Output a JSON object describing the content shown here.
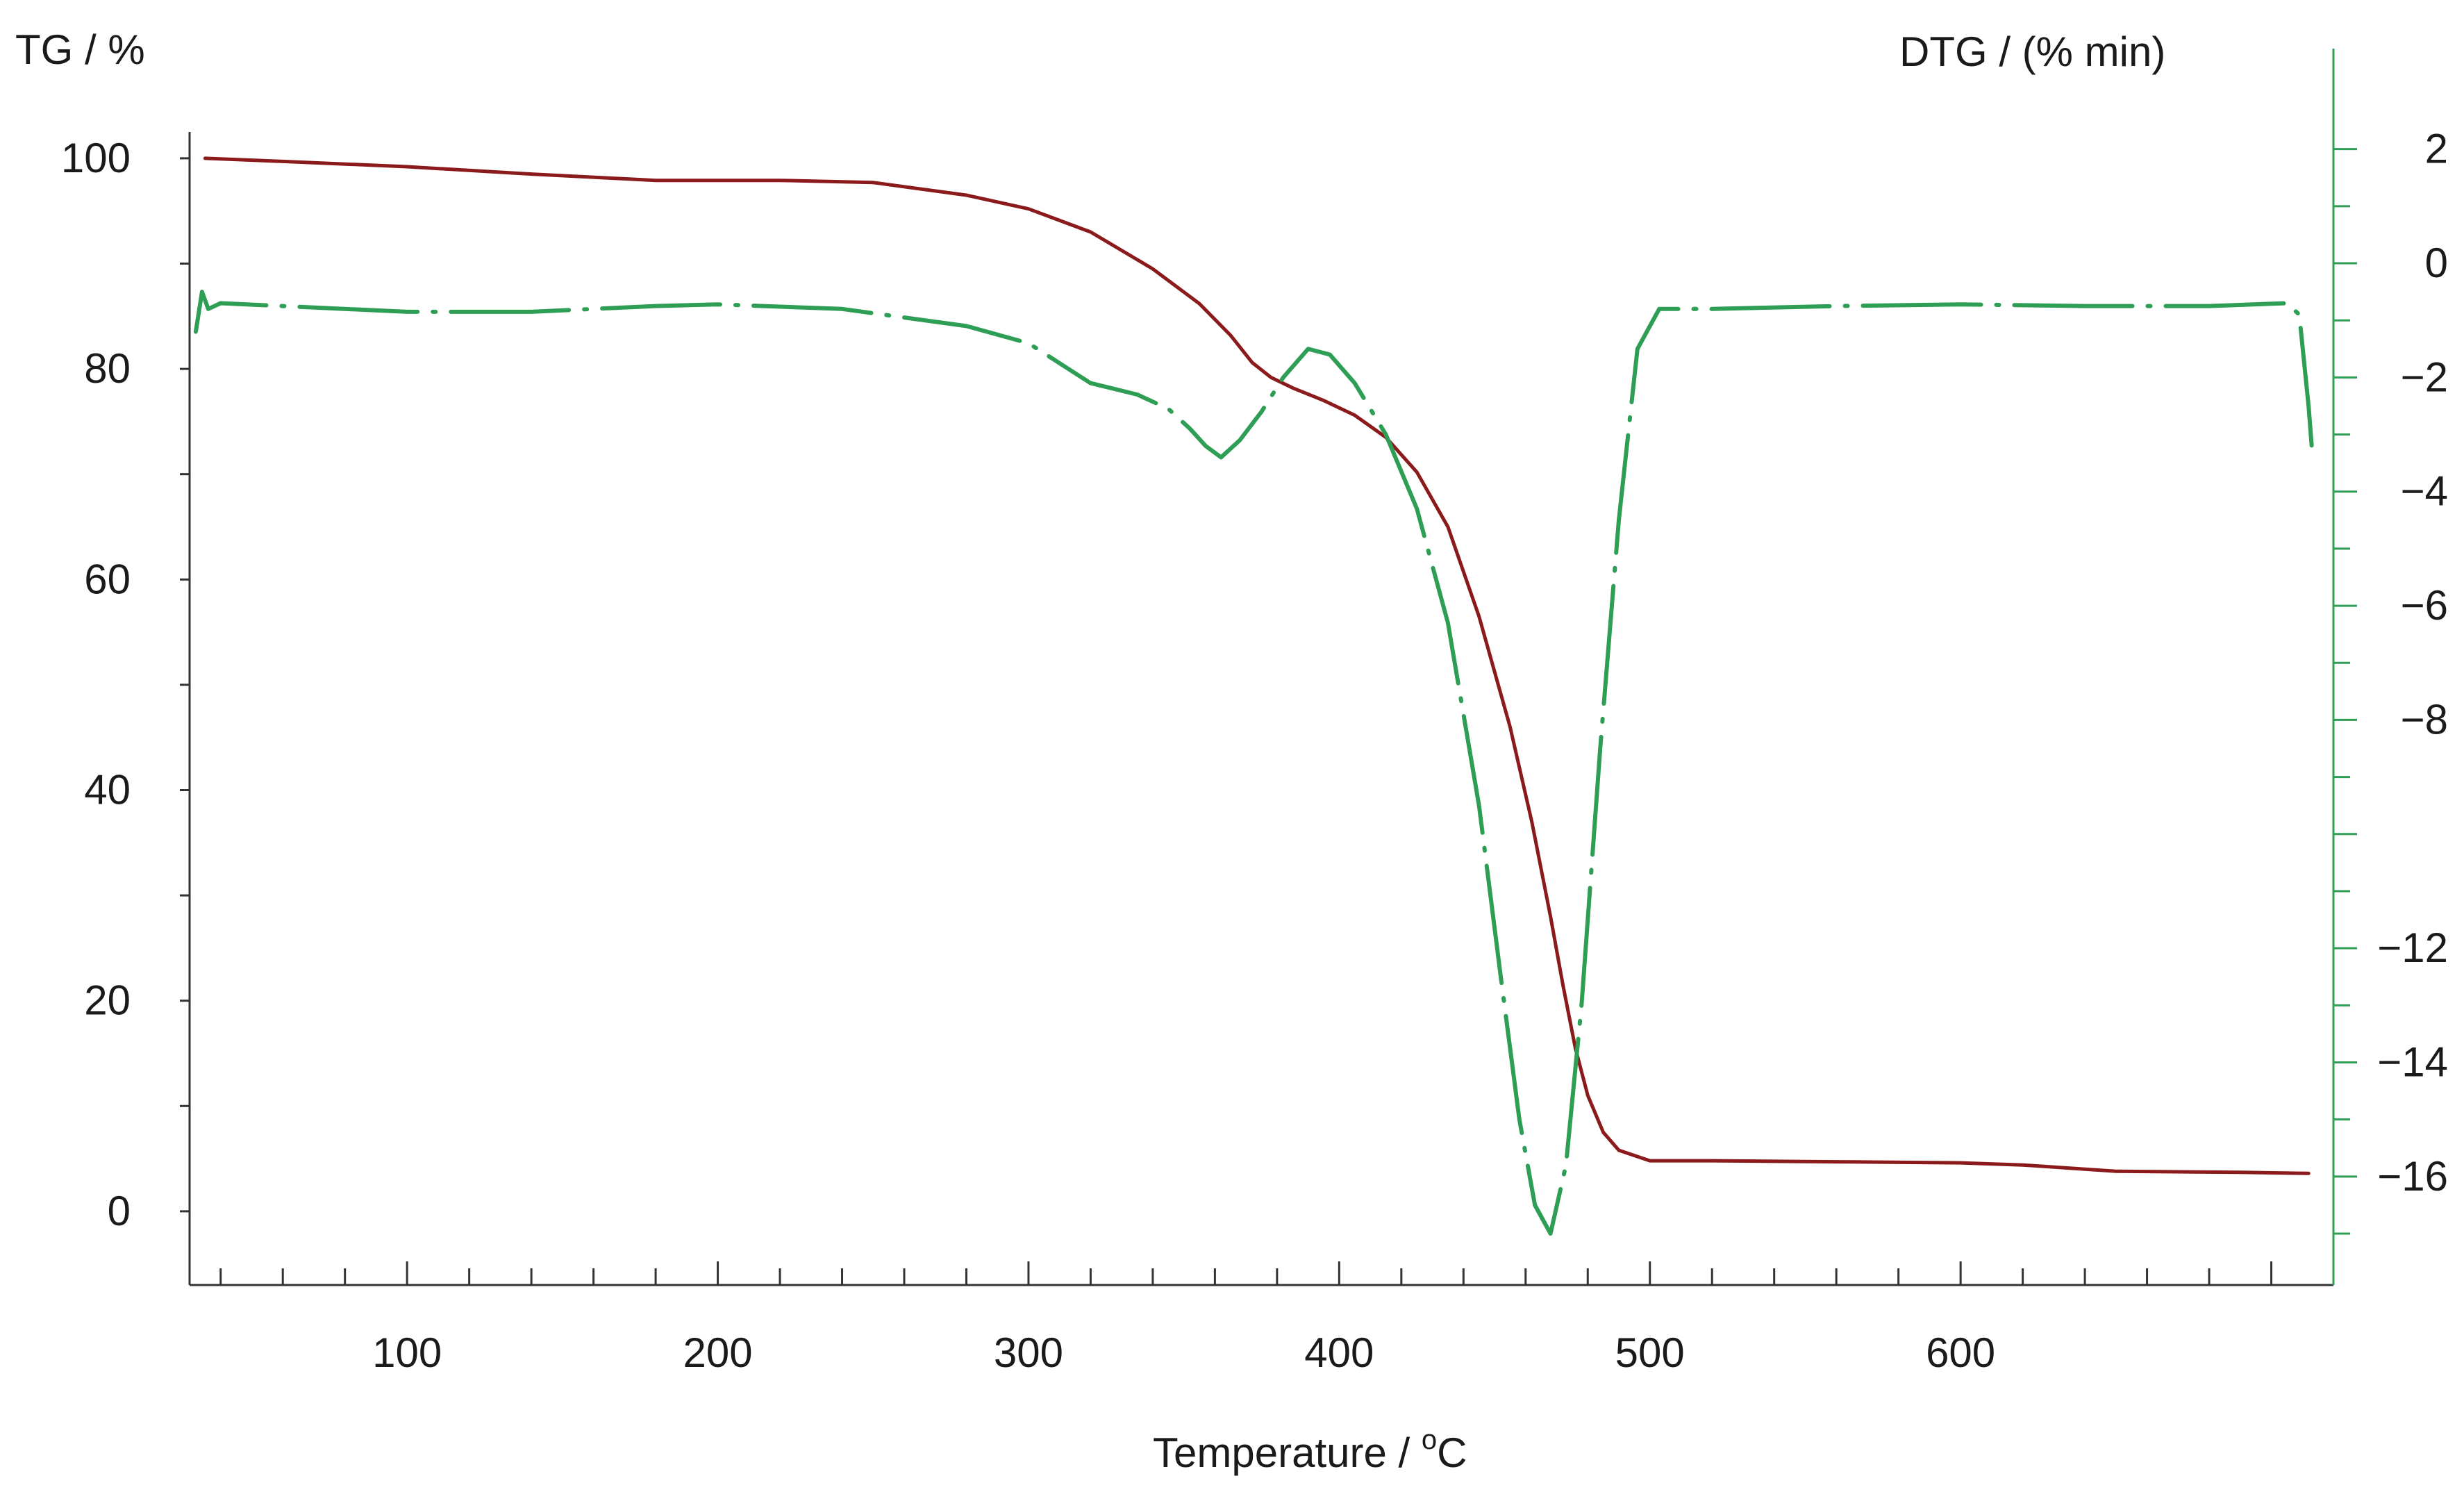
{
  "chart_data": {
    "type": "line",
    "title": "",
    "xlabel": "Temperature / °C",
    "xlabel_main": "Temperature / ",
    "xlabel_sup": "o",
    "xlabel_unit": "C",
    "ylabel": "TG / %",
    "y2label": "DTG / (% min)",
    "xlim": [
      30,
      720
    ],
    "ylim": [
      -7,
      102.5
    ],
    "y2lim": [
      -17.9,
      2.3
    ],
    "grid": false,
    "x_ticks": [
      100,
      200,
      300,
      400,
      500,
      600
    ],
    "y_ticks": [
      0,
      20,
      40,
      60,
      80,
      100
    ],
    "y2_ticks": [
      2,
      0,
      -2,
      -4,
      -6,
      -8,
      -12,
      -14,
      -16
    ],
    "y2_tick_labels": [
      "2",
      "0",
      "−2",
      "−4",
      "−6",
      "−8",
      "−12",
      "−14",
      "−16"
    ],
    "series": [
      {
        "name": "TG",
        "axis": "left",
        "color": "#8b1a1a",
        "style": "solid",
        "x": [
          35,
          60,
          100,
          140,
          180,
          220,
          250,
          280,
          300,
          320,
          340,
          355,
          365,
          372,
          378,
          385,
          395,
          405,
          415,
          425,
          435,
          445,
          455,
          462,
          468,
          472,
          476,
          480,
          485,
          490,
          500,
          520,
          560,
          600,
          620,
          650,
          690,
          712
        ],
        "values": [
          100,
          99.7,
          99.2,
          98.5,
          97.9,
          97.9,
          97.7,
          96.5,
          95.2,
          93,
          89.5,
          86.2,
          83.2,
          80.6,
          79.2,
          78.2,
          77,
          75.6,
          73.5,
          70.2,
          65,
          56.5,
          46,
          37,
          28,
          21.5,
          15.5,
          11,
          7.5,
          5.8,
          4.8,
          4.8,
          4.7,
          4.6,
          4.4,
          3.8,
          3.7,
          3.6
        ]
      },
      {
        "name": "DTG",
        "axis": "right",
        "color": "#2e9e55",
        "style": "dash-dot",
        "x": [
          32,
          34,
          36,
          40,
          60,
          100,
          140,
          180,
          200,
          240,
          280,
          300,
          320,
          335,
          345,
          352,
          357,
          362,
          368,
          375,
          382,
          390,
          397,
          405,
          415,
          425,
          435,
          445,
          452,
          458,
          463,
          468,
          473,
          478,
          484,
          490,
          496,
          503,
          520,
          560,
          600,
          640,
          680,
          705,
          709,
          712,
          713
        ],
        "values": [
          -1.2,
          -0.5,
          -0.8,
          -0.7,
          -0.75,
          -0.85,
          -0.85,
          -0.75,
          -0.72,
          -0.8,
          -1.1,
          -1.4,
          -2.1,
          -2.3,
          -2.55,
          -2.9,
          -3.2,
          -3.4,
          -3.1,
          -2.6,
          -2.0,
          -1.5,
          -1.6,
          -2.1,
          -3.0,
          -4.3,
          -6.3,
          -9.5,
          -12.5,
          -15.0,
          -16.5,
          -17.0,
          -15.8,
          -13.0,
          -8.5,
          -4.5,
          -1.5,
          -0.8,
          -0.8,
          -0.75,
          -0.72,
          -0.75,
          -0.75,
          -0.7,
          -0.9,
          -2.5,
          -3.2
        ]
      }
    ]
  }
}
